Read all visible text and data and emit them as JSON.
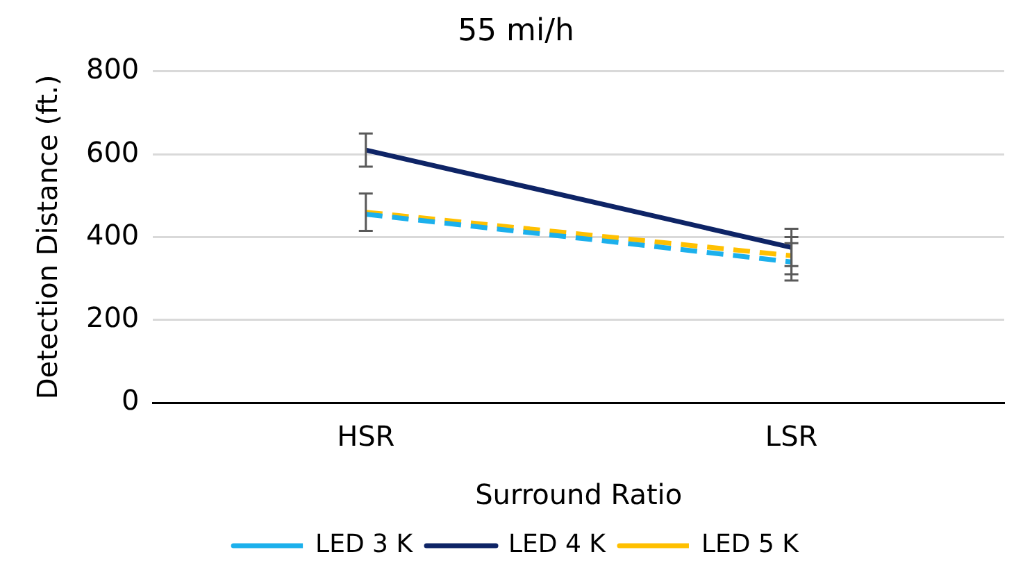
{
  "chart_data": {
    "type": "line",
    "title": "55 mi/h",
    "xlabel": "Surround Ratio",
    "ylabel": "Detection Distance (ft.)",
    "categories": [
      "HSR",
      "LSR"
    ],
    "series": [
      {
        "name": "LED 3 K",
        "color": "#1cb0ec",
        "values": [
          455,
          340
        ],
        "errors": [
          null,
          45
        ],
        "line_style": "dashed"
      },
      {
        "name": "LED 4 K",
        "color": "#0e2466",
        "values": [
          610,
          375
        ],
        "errors": [
          40,
          45
        ],
        "line_style": "solid"
      },
      {
        "name": "LED 5 K",
        "color": "#ffc000",
        "values": [
          460,
          355
        ],
        "errors": [
          45,
          45
        ],
        "line_style": "dashed"
      }
    ],
    "ylim": [
      0,
      800
    ],
    "yticks": [
      0,
      200,
      400,
      600,
      800
    ],
    "grid": "y",
    "legend": "bottom",
    "marker": "none"
  }
}
